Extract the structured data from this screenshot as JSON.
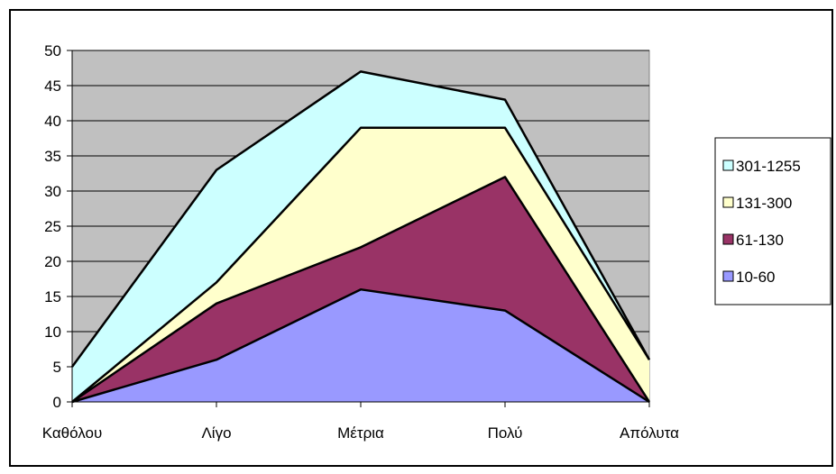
{
  "chart_data": {
    "type": "area",
    "stacked": true,
    "categories": [
      "Καθόλου",
      "Λίγο",
      "Μέτρια",
      "Πολύ",
      "Απόλυτα"
    ],
    "series": [
      {
        "name": "10-60",
        "values": [
          0,
          6,
          16,
          13,
          0
        ],
        "color": "#9999ff"
      },
      {
        "name": "61-130",
        "values": [
          0,
          8,
          6,
          19,
          0
        ],
        "color": "#993366"
      },
      {
        "name": "131-300",
        "values": [
          0,
          3,
          17,
          7,
          6
        ],
        "color": "#ffffcc"
      },
      {
        "name": "301-1255",
        "values": [
          5,
          16,
          8,
          4,
          0
        ],
        "color": "#ccffff"
      }
    ],
    "title": "",
    "xlabel": "",
    "ylabel": "",
    "ylim": [
      0,
      50
    ],
    "y_ticks": [
      0,
      5,
      10,
      15,
      20,
      25,
      30,
      35,
      40,
      45,
      50
    ],
    "grid": true,
    "plot_background": "#c0c0c0",
    "legend_position": "right",
    "legend_order": [
      "301-1255",
      "131-300",
      "61-130",
      "10-60"
    ]
  }
}
